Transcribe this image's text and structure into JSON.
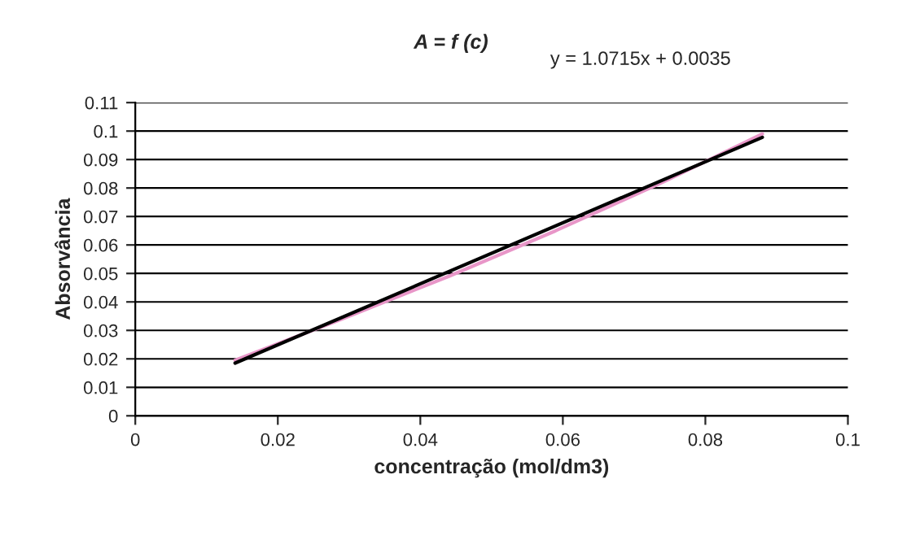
{
  "chart_data": {
    "type": "line",
    "title": "A = f (c)",
    "xlabel": "concentração (mol/dm3)",
    "ylabel": "Absorvância",
    "annotations": [
      "y = 1.0715x + 0.0035"
    ],
    "series": [
      {
        "color": "#e896c8",
        "x": [
          0.014,
          0.029,
          0.044,
          0.059,
          0.074,
          0.088
        ],
        "values": [
          0.0195,
          0.034,
          0.049,
          0.065,
          0.082,
          0.099
        ]
      },
      {
        "color": "#000000",
        "x": [
          0.014,
          0.088
        ],
        "values": [
          0.0185,
          0.0978
        ]
      }
    ],
    "xlim": [
      0,
      0.1
    ],
    "xticks": [
      {
        "value": 0,
        "label": "0"
      },
      0.02,
      0.04,
      0.06,
      0.08,
      0.1
    ],
    "ylim": [
      0,
      0.11
    ],
    "yticks": [
      {
        "value": 0,
        "label": "0"
      },
      0.01,
      0.02,
      0.03,
      0.04,
      0.05,
      0.06,
      0.07,
      0.08,
      0.09,
      0.1,
      0.11
    ],
    "grid": "y",
    "legend": false,
    "marker": "none",
    "line_style": "solid"
  }
}
